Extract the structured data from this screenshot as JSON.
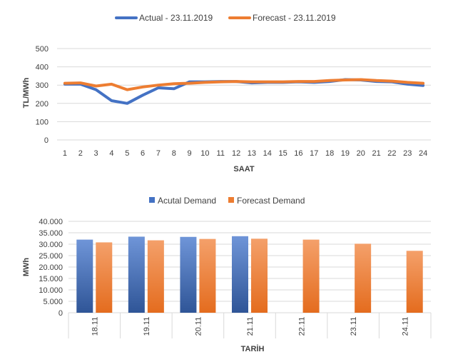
{
  "chart_data": [
    {
      "type": "line",
      "title": "",
      "xlabel": "SAAT",
      "ylabel": "TL/MWh",
      "ylim": [
        0,
        500
      ],
      "yticks": [
        "0",
        "100",
        "200",
        "300",
        "400",
        "500"
      ],
      "grid": true,
      "legend": "top",
      "x": [
        "1",
        "2",
        "3",
        "4",
        "5",
        "6",
        "7",
        "8",
        "9",
        "10",
        "11",
        "12",
        "13",
        "14",
        "15",
        "16",
        "17",
        "18",
        "19",
        "20",
        "21",
        "22",
        "23",
        "24"
      ],
      "series": [
        {
          "name": "Actual - 23.11.2019",
          "color": "#4472C4",
          "values": [
            305,
            305,
            275,
            215,
            200,
            245,
            285,
            280,
            318,
            318,
            320,
            320,
            312,
            315,
            315,
            318,
            315,
            320,
            330,
            328,
            320,
            318,
            305,
            298
          ]
        },
        {
          "name": "Forecast - 23.11.2019",
          "color": "#ED7D31",
          "values": [
            310,
            312,
            295,
            305,
            275,
            290,
            300,
            308,
            310,
            315,
            318,
            320,
            318,
            318,
            318,
            320,
            320,
            325,
            328,
            330,
            325,
            322,
            315,
            310
          ]
        }
      ]
    },
    {
      "type": "bar",
      "title": "",
      "xlabel": "TARİH",
      "ylabel": "MWh",
      "ylim": [
        0,
        40000
      ],
      "yticks": [
        "0",
        "5.000",
        "10.000",
        "15.000",
        "20.000",
        "25.000",
        "30.000",
        "35.000",
        "40.000"
      ],
      "grid": true,
      "legend": "top",
      "categories": [
        "18.11",
        "19.11",
        "20.11",
        "21.11",
        "22.11",
        "23.11",
        "24.11"
      ],
      "series": [
        {
          "name": "Acutal Demand",
          "color": "#4472C4",
          "values": [
            32000,
            33300,
            33200,
            33500,
            null,
            null,
            null
          ]
        },
        {
          "name": "Forecast Demand",
          "color": "#ED7D31",
          "values": [
            30800,
            31700,
            32300,
            32400,
            32000,
            30200,
            27100
          ]
        }
      ]
    }
  ]
}
